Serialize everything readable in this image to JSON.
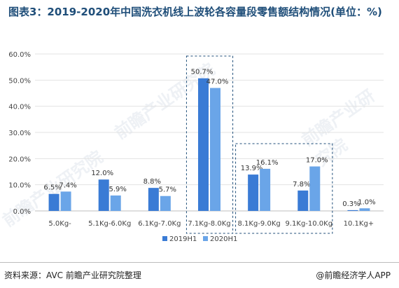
{
  "title": "图表3：2019-2020年中国洗衣机线上波轮各容量段零售额结构情况(单位：%)",
  "source": "资料来源：AVC 前瞻产业研究院整理",
  "brand": "@前瞻经济学人APP",
  "watermarks": [
    "前瞻产业研究院",
    "前瞻产业研究院",
    "前瞻产业研究院"
  ],
  "colors": {
    "s2019": "#3a7bd5",
    "s2020": "#6aa5e8",
    "highlight_box": "#1f4e79"
  },
  "chart_data": {
    "type": "bar",
    "categories": [
      "5.0Kg-",
      "5.1Kg-6.0Kg",
      "6.1Kg-7.0Kg",
      "7.1Kg-8.0Kg",
      "8.1Kg-9.0Kg",
      "9.1Kg-10.0Kg",
      "10.1Kg+"
    ],
    "series": [
      {
        "name": "2019H1",
        "values": [
          6.5,
          12.0,
          8.8,
          50.7,
          13.9,
          7.8,
          0.3
        ],
        "labels": [
          "6.5%",
          "12.0%",
          "8.8%",
          "50.7%",
          "13.9%",
          "7.8%",
          "0.3%"
        ]
      },
      {
        "name": "2020H1",
        "values": [
          7.4,
          5.9,
          5.7,
          47.0,
          16.1,
          17.0,
          1.0
        ],
        "labels": [
          "7.4%",
          "5.9%",
          "5.7%",
          "47.0%",
          "16.1%",
          "17.0%",
          "1.0%"
        ]
      }
    ],
    "ylim": [
      0,
      60
    ],
    "yticks": [
      "0.0%",
      "10.0%",
      "20.0%",
      "30.0%",
      "40.0%",
      "50.0%",
      "60.0%"
    ],
    "grid": true,
    "legend": "bottom-center",
    "highlight_groups": [
      [
        3
      ],
      [
        4,
        5
      ]
    ]
  }
}
